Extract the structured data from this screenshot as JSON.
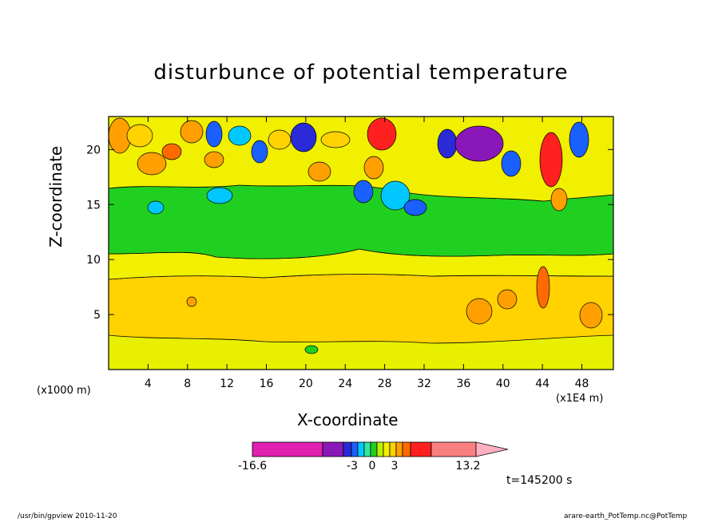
{
  "chart_data": {
    "type": "heatmap",
    "title": "disturbunce of potential temperature",
    "xlabel": "X-coordinate",
    "ylabel": "Z-coordinate",
    "x_unit": "(x1000 m)",
    "x_scale_note": "(x1E4 m)",
    "xlim": [
      0,
      51.2
    ],
    "ylim": [
      0,
      23
    ],
    "x_ticks": [
      "4",
      "8",
      "12",
      "16",
      "20",
      "24",
      "28",
      "32",
      "36",
      "40",
      "44",
      "48"
    ],
    "y_ticks": [
      "5",
      "10",
      "15",
      "20"
    ],
    "colorbar": {
      "min_label": "-16.6",
      "max_label": "13.2",
      "mid_labels": [
        "-3",
        "0",
        "3"
      ],
      "colors": [
        "#e020b0",
        "#8a18b8",
        "#2a2ad8",
        "#1a60ff",
        "#00c8ff",
        "#2ee8a0",
        "#20d020",
        "#c0f000",
        "#f0f000",
        "#ffd200",
        "#ffa000",
        "#ff6a00",
        "#ff2020",
        "#f88080",
        "#ffb0c0"
      ]
    },
    "bands_by_height": [
      {
        "z": [
          0,
          1.5
        ],
        "level": "0..1 (yellow-green)"
      },
      {
        "z": [
          1.5,
          8.5
        ],
        "level": "1..2 (orange-yellow)"
      },
      {
        "z": [
          8.5,
          10
        ],
        "level": "0..1 (yellow)"
      },
      {
        "z": [
          10,
          17
        ],
        "level": "-1..0 (green)"
      },
      {
        "z": [
          17,
          23
        ],
        "level": "mixed disturbances -16.6..13.2"
      }
    ]
  },
  "time_label": "t=145200 s",
  "footer": {
    "program": "/usr/bin/gpview  2010-11-20",
    "source": "arare-earth_PotTemp.nc@PotTemp"
  }
}
